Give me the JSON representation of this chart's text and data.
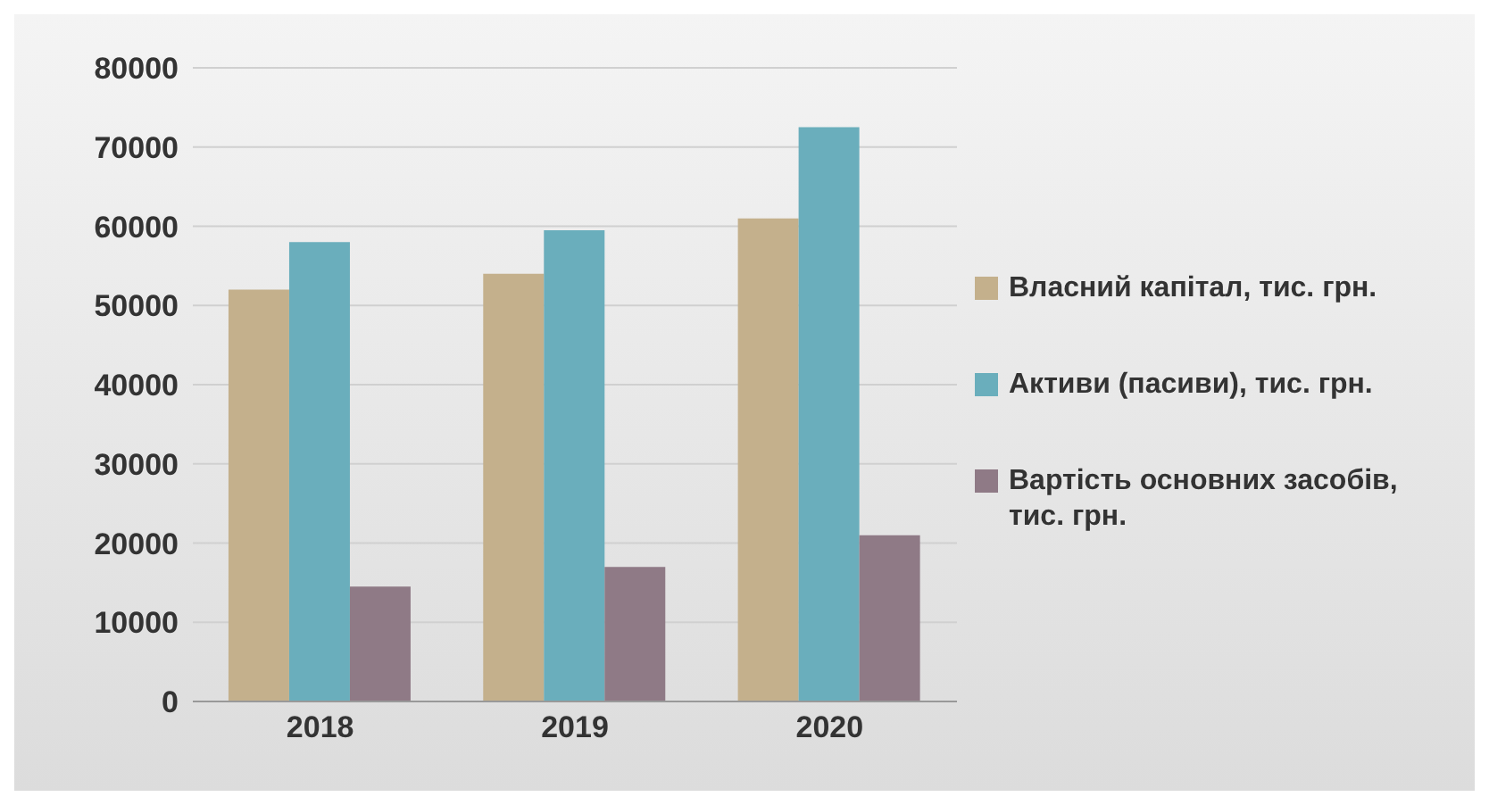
{
  "chart_data": {
    "type": "bar",
    "categories": [
      "2018",
      "2019",
      "2020"
    ],
    "series": [
      {
        "name": "Власний капітал, тис. грн.",
        "color": "#c4b08c",
        "values": [
          52000,
          54000,
          61000
        ]
      },
      {
        "name": "Активи (пасиви), тис. грн.",
        "color": "#6aaebc",
        "values": [
          58000,
          59500,
          72500
        ]
      },
      {
        "name": "Вартість основних засобів, тис. грн.",
        "color": "#8f7a86",
        "values": [
          14500,
          17000,
          21000
        ]
      }
    ],
    "ylim": [
      0,
      80000
    ],
    "yticks": [
      0,
      10000,
      20000,
      30000,
      40000,
      50000,
      60000,
      70000,
      80000
    ],
    "grid": "y",
    "legend": "right"
  }
}
